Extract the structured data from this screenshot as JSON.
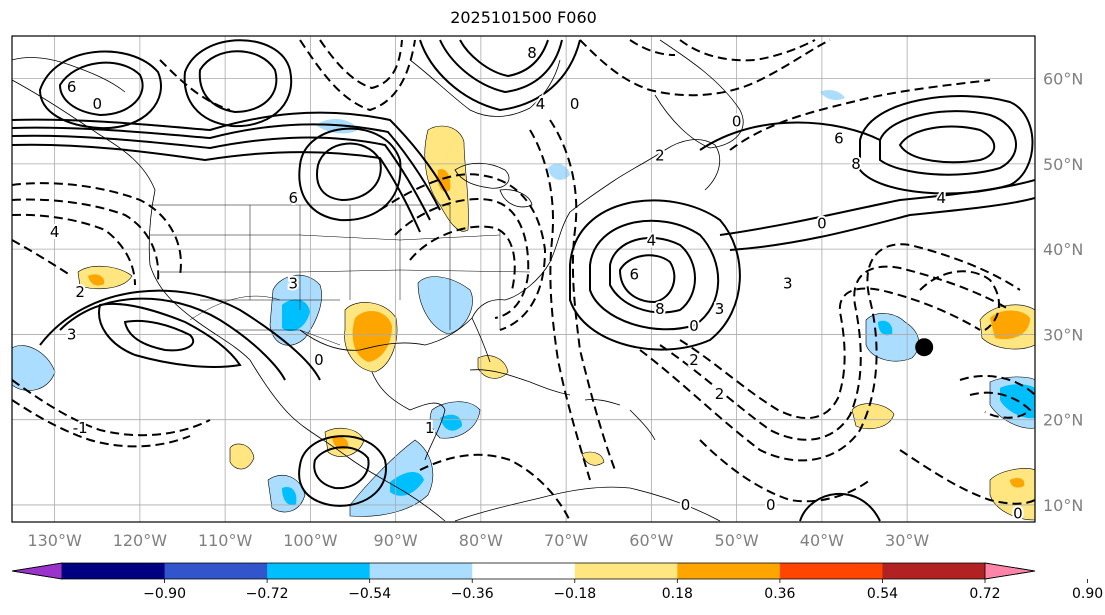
{
  "title": "2025101500 F060",
  "lat_labels": [
    "60°N",
    "50°N",
    "40°N",
    "30°N",
    "20°N",
    "10°N"
  ],
  "lat_values": [
    60,
    50,
    40,
    30,
    20,
    10
  ],
  "lon_labels": [
    "130°W",
    "120°W",
    "110°W",
    "100°W",
    "90°W",
    "80°W",
    "70°W",
    "60°W",
    "50°W",
    "40°W",
    "30°W"
  ],
  "lon_values": [
    -130,
    -120,
    -110,
    -100,
    -90,
    -80,
    -70,
    -60,
    -50,
    -40,
    -30
  ],
  "map_extent": {
    "lon_min": -135,
    "lon_max": -15,
    "lat_min": 8,
    "lat_max": 65
  },
  "colorbar": {
    "tick_labels": [
      "−0.90",
      "−0.72",
      "−0.54",
      "−0.36",
      "−0.18",
      "0.18",
      "0.36",
      "0.54",
      "0.72",
      "0.90"
    ],
    "colors": [
      "#9933cc",
      "#000080",
      "#3355cc",
      "#00bfff",
      "#aaddff",
      "#ffffff",
      "#ffe680",
      "#ffa500",
      "#ff4500",
      "#b22222",
      "#ff85a8"
    ]
  },
  "contour_labels": [
    {
      "text": "6",
      "lon": -128,
      "lat": 59
    },
    {
      "text": "0",
      "lon": -125,
      "lat": 57
    },
    {
      "text": "6",
      "lon": -102,
      "lat": 46
    },
    {
      "text": "3",
      "lon": -128,
      "lat": 30
    },
    {
      "text": "3",
      "lon": -102,
      "lat": 36
    },
    {
      "text": "0",
      "lon": -99,
      "lat": 27
    },
    {
      "text": "-1",
      "lon": -127,
      "lat": 19
    },
    {
      "text": "8",
      "lon": -74,
      "lat": 63
    },
    {
      "text": "4",
      "lon": -73,
      "lat": 57
    },
    {
      "text": "0",
      "lon": -69,
      "lat": 57
    },
    {
      "text": "4",
      "lon": -60,
      "lat": 41
    },
    {
      "text": "6",
      "lon": -62,
      "lat": 37
    },
    {
      "text": "8",
      "lon": -59,
      "lat": 33
    },
    {
      "text": "3",
      "lon": -52,
      "lat": 33
    },
    {
      "text": "0",
      "lon": -55,
      "lat": 31
    },
    {
      "text": "2",
      "lon": -59,
      "lat": 51
    },
    {
      "text": "6",
      "lon": -38,
      "lat": 53
    },
    {
      "text": "8",
      "lon": -36,
      "lat": 50
    },
    {
      "text": "4",
      "lon": -26,
      "lat": 46
    },
    {
      "text": "0",
      "lon": -40,
      "lat": 43
    },
    {
      "text": "0",
      "lon": -50,
      "lat": 55
    },
    {
      "text": "3",
      "lon": -44,
      "lat": 36
    },
    {
      "text": "2",
      "lon": -52,
      "lat": 23
    },
    {
      "text": "2",
      "lon": -55,
      "lat": 27
    },
    {
      "text": "0",
      "lon": -56,
      "lat": 10
    },
    {
      "text": "0",
      "lon": -46,
      "lat": 10
    },
    {
      "text": "0",
      "lon": -17,
      "lat": 9
    },
    {
      "text": "1",
      "lon": -86,
      "lat": 19
    },
    {
      "text": "4",
      "lon": -130,
      "lat": 42
    },
    {
      "text": "2",
      "lon": -127,
      "lat": 35
    }
  ],
  "marker": {
    "lon": -28,
    "lat": 28.5,
    "color": "#000000"
  }
}
